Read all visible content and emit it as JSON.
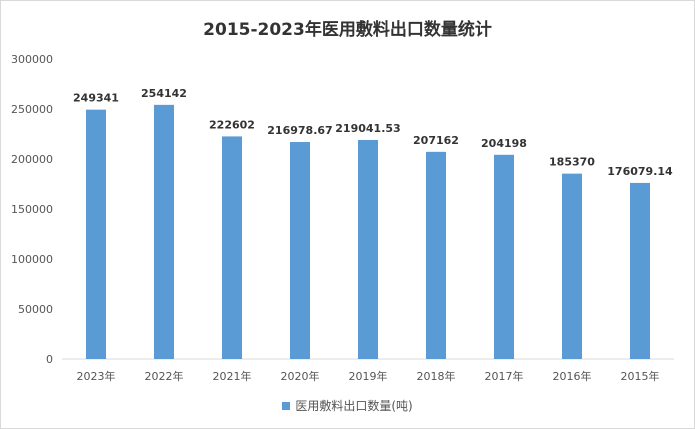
{
  "chart_data": {
    "type": "bar",
    "title": "2015-2023年医用敷料出口数量统计",
    "categories": [
      "2023年",
      "2022年",
      "2021年",
      "2020年",
      "2019年",
      "2018年",
      "2017年",
      "2016年",
      "2015年"
    ],
    "series": [
      {
        "name": "医用敷料出口数量(吨)",
        "values": [
          249341,
          254142,
          222602,
          216978.67,
          219041.53,
          207162,
          204198,
          185370,
          176079.14
        ],
        "color": "#5b9bd5"
      }
    ],
    "data_labels": [
      "249341",
      "254142",
      "222602",
      "216978.67",
      "219041.53",
      "207162",
      "204198",
      "185370",
      "176079.14"
    ],
    "ylim": [
      0,
      300000
    ],
    "yticks": [
      0,
      50000,
      100000,
      150000,
      200000,
      250000,
      300000
    ],
    "grid": false,
    "legend": "bottom"
  }
}
